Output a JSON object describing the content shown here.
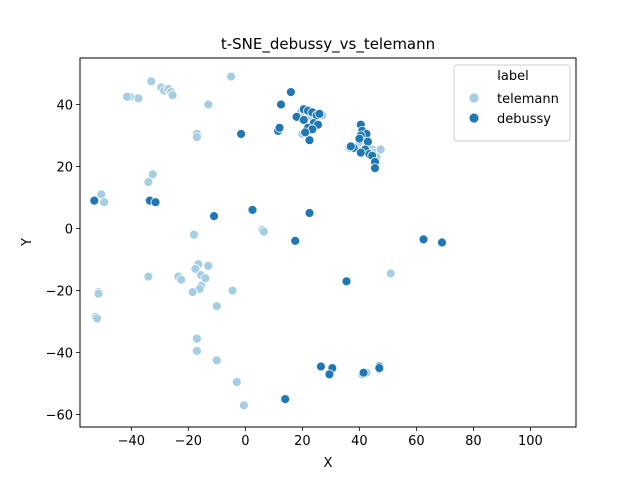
{
  "chart_data": {
    "type": "scatter",
    "title": "t-SNE_debussy_vs_telemann",
    "xlabel": "X",
    "ylabel": "Y",
    "xlim": [
      -58,
      116
    ],
    "ylim": [
      -64,
      55
    ],
    "xticks": [
      -40,
      -20,
      0,
      20,
      40,
      60,
      80,
      100
    ],
    "yticks": [
      -60,
      -40,
      -20,
      0,
      20,
      40
    ],
    "grid": false,
    "legend": {
      "title": "label",
      "position": "top-right"
    },
    "series": [
      {
        "name": "telemann",
        "color": "#a6cee3",
        "points": [
          [
            -5,
            49
          ],
          [
            -33,
            47.5
          ],
          [
            -29.5,
            45.5
          ],
          [
            -28.5,
            44.5
          ],
          [
            -27,
            45
          ],
          [
            -26,
            44
          ],
          [
            -25.5,
            43
          ],
          [
            -40.5,
            42.5
          ],
          [
            -41.5,
            42.5
          ],
          [
            -37.5,
            42
          ],
          [
            -13,
            40
          ],
          [
            -17,
            30.5
          ],
          [
            -17,
            29.5
          ],
          [
            -32.5,
            17.5
          ],
          [
            -34,
            15
          ],
          [
            -50.5,
            11
          ],
          [
            -49.5,
            8.5
          ],
          [
            -18,
            -2
          ],
          [
            6,
            -0.5
          ],
          [
            6.5,
            -1
          ],
          [
            -16.5,
            -11.5
          ],
          [
            -13,
            -12
          ],
          [
            -17.5,
            -13
          ],
          [
            -15.5,
            -15
          ],
          [
            -14,
            -16
          ],
          [
            -23.5,
            -15.5
          ],
          [
            -22.5,
            -16.5
          ],
          [
            -34,
            -15.5
          ],
          [
            -15.5,
            -18.5
          ],
          [
            -16,
            -19.5
          ],
          [
            -18.5,
            -20.5
          ],
          [
            -4.5,
            -20
          ],
          [
            -10,
            -25
          ],
          [
            -51.5,
            -20.5
          ],
          [
            -51.5,
            -21
          ],
          [
            -52.5,
            -28.5
          ],
          [
            -52,
            -29
          ],
          [
            -17,
            -35.5
          ],
          [
            -17,
            -39.5
          ],
          [
            -10,
            -42.5
          ],
          [
            -3,
            -49.5
          ],
          [
            -0.5,
            -57
          ],
          [
            51,
            -14.5
          ],
          [
            19.5,
            37.5
          ],
          [
            23,
            36
          ],
          [
            20,
            30.5
          ],
          [
            21,
            31.5
          ],
          [
            25,
            37
          ],
          [
            26.5,
            36.5
          ],
          [
            27,
            36.5
          ],
          [
            36.5,
            26
          ],
          [
            39,
            26.5
          ],
          [
            40,
            28
          ],
          [
            42.5,
            28.5
          ],
          [
            43,
            25
          ],
          [
            44.5,
            25.5
          ],
          [
            45,
            24.5
          ],
          [
            46,
            23
          ],
          [
            47.5,
            25.5
          ],
          [
            41,
            -47
          ],
          [
            42.5,
            -46.5
          ],
          [
            47,
            -45.5
          ]
        ]
      },
      {
        "name": "debussy",
        "color": "#1f78b4",
        "points": [
          [
            16,
            44
          ],
          [
            12.5,
            40
          ],
          [
            18,
            36
          ],
          [
            20.5,
            38.5
          ],
          [
            22,
            38
          ],
          [
            23.5,
            37.5
          ],
          [
            25,
            36.5
          ],
          [
            26,
            37
          ],
          [
            20.5,
            35
          ],
          [
            24,
            34
          ],
          [
            25.5,
            33.5
          ],
          [
            22,
            32.5
          ],
          [
            23.5,
            32
          ],
          [
            21,
            31
          ],
          [
            11.5,
            31.5
          ],
          [
            12,
            32.5
          ],
          [
            -1.5,
            30.5
          ],
          [
            22.5,
            28.5
          ],
          [
            40.5,
            33.5
          ],
          [
            41,
            31.5
          ],
          [
            42.5,
            30.5
          ],
          [
            40.5,
            30
          ],
          [
            40,
            29
          ],
          [
            43,
            28
          ],
          [
            38,
            26
          ],
          [
            37,
            26.5
          ],
          [
            42,
            25.5
          ],
          [
            43.5,
            24
          ],
          [
            44.5,
            23.5
          ],
          [
            40.5,
            24.5
          ],
          [
            45.5,
            21.5
          ],
          [
            45.5,
            19.5
          ],
          [
            -53,
            9
          ],
          [
            -33.5,
            9
          ],
          [
            -31.5,
            8.5
          ],
          [
            -11,
            4
          ],
          [
            2.5,
            6
          ],
          [
            22.5,
            5
          ],
          [
            17.5,
            -4
          ],
          [
            62.5,
            -3.5
          ],
          [
            69,
            -4.5
          ],
          [
            35.5,
            -17
          ],
          [
            26.5,
            -44.5
          ],
          [
            30.5,
            -45
          ],
          [
            29.5,
            -47
          ],
          [
            41.5,
            -46.5
          ],
          [
            47,
            -44.5
          ],
          [
            47,
            -45
          ],
          [
            14,
            -55
          ]
        ]
      }
    ]
  }
}
